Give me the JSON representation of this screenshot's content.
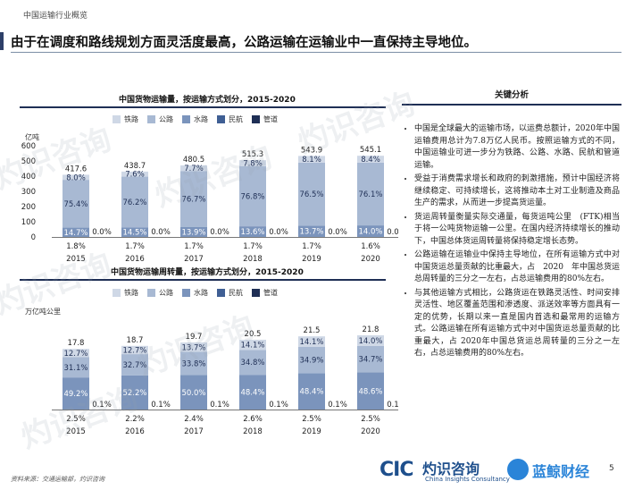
{
  "section_label": "中国运输行业概览",
  "headline": "由于在调度和路线规划方面灵活度最高，公路运输在运输业中一直保持主导地位。",
  "legend": [
    "铁路",
    "公路",
    "水路",
    "民航",
    "管道"
  ],
  "colors": {
    "铁路": "#cfd8e6",
    "公路": "#a8b9d3",
    "水路": "#7b94bc",
    "民航": "#3f5f94",
    "管道": "#1f2f55"
  },
  "chart_data": [
    {
      "type": "bar",
      "title": "中国货物运输量，按运输方式划分，2015-2020",
      "ylabel": "亿吨",
      "ylim": [
        0,
        600
      ],
      "yticks": [
        0,
        100,
        200,
        300,
        400,
        500,
        600
      ],
      "categories": [
        "2015",
        "2016",
        "2017",
        "2018",
        "2019",
        "2020"
      ],
      "totals": [
        "417.6",
        "438.7",
        "480.5",
        "515.3",
        "543.9",
        "545.1"
      ],
      "total_values": [
        417.6,
        438.7,
        480.5,
        515.3,
        543.9,
        545.1
      ],
      "series": [
        {
          "name": "铁路",
          "labels": [
            "8.0%",
            "7.6%",
            "7.7%",
            "7.8%",
            "8.1%",
            "8.4%"
          ],
          "values": [
            8.0,
            7.6,
            7.7,
            7.8,
            8.1,
            8.4
          ]
        },
        {
          "name": "公路",
          "labels": [
            "75.4%",
            "76.2%",
            "76.7%",
            "76.8%",
            "76.5%",
            "76.1%"
          ],
          "values": [
            75.4,
            76.2,
            76.7,
            76.8,
            76.5,
            76.1
          ]
        },
        {
          "name": "水路",
          "labels": [
            "14.7%",
            "14.5%",
            "13.9%",
            "13.6%",
            "13.7%",
            "14.0%"
          ],
          "values": [
            14.7,
            14.5,
            13.9,
            13.6,
            13.7,
            14.0
          ]
        },
        {
          "name": "民航",
          "labels": [
            "0.0%",
            "0.0%",
            "0.0%",
            "0.0%",
            "0.0%",
            "0.0%"
          ],
          "values": [
            0.0,
            0.0,
            0.0,
            0.0,
            0.0,
            0.0
          ]
        },
        {
          "name": "管道",
          "labels": [
            "1.8%",
            "1.7%",
            "1.7%",
            "1.7%",
            "1.7%",
            "1.6%"
          ],
          "values": [
            1.8,
            1.7,
            1.7,
            1.7,
            1.7,
            1.6
          ]
        }
      ]
    },
    {
      "type": "bar",
      "title": "中国货物运输周转量，按运输方式划分，2015-2020",
      "ylabel": "万亿吨公里",
      "categories": [
        "2015",
        "2016",
        "2017",
        "2018",
        "2019",
        "2020"
      ],
      "totals": [
        "17.8",
        "18.7",
        "19.7",
        "20.5",
        "21.5",
        "21.8"
      ],
      "total_values": [
        17.8,
        18.7,
        19.7,
        20.5,
        21.5,
        21.8
      ],
      "series": [
        {
          "name": "铁路",
          "labels": [
            "12.7%",
            "12.7%",
            "13.7%",
            "14.1%",
            "14.1%",
            "14.0%"
          ],
          "values": [
            12.7,
            12.7,
            13.7,
            14.1,
            14.1,
            14.0
          ]
        },
        {
          "name": "公路",
          "labels": [
            "31.1%",
            "32.7%",
            "33.8%",
            "34.8%",
            "34.9%",
            "34.7%"
          ],
          "values": [
            31.1,
            32.7,
            33.8,
            34.8,
            34.9,
            34.7
          ]
        },
        {
          "name": "水路",
          "labels": [
            "49.2%",
            "52.2%",
            "50.0%",
            "48.4%",
            "48.4%",
            "48.6%"
          ],
          "values": [
            49.2,
            52.2,
            50.0,
            48.4,
            48.4,
            48.6
          ]
        },
        {
          "name": "民航",
          "labels": [
            "0.1%",
            "0.1%",
            "0.1%",
            "0.1%",
            "0.1%",
            "0.1%"
          ],
          "values": [
            0.1,
            0.1,
            0.1,
            0.1,
            0.1,
            0.1
          ]
        },
        {
          "name": "管道",
          "labels": [
            "2.5%",
            "2.2%",
            "2.4%",
            "2.6%",
            "2.5%",
            "2.5%"
          ],
          "values": [
            2.5,
            2.2,
            2.4,
            2.6,
            2.5,
            2.5
          ]
        }
      ]
    }
  ],
  "analysis": {
    "title": "关键分析",
    "bullets": [
      "中国是全球最大的运输市场，以运费总额计，2020年中国运输费用总计为7.8万亿人民币。按照运输方式的不同，中国运输业可进一步分为铁路、公路、水路、民航和管道运输。",
      "受益于消费需求增长和政府的刺激措施，预计中国经济将继续稳定、可持续增长，这将推动本土对工业制造及商品生产的需求，从而进一步提高货运量。",
      "货运周转量衡量实际交通量，每货运吨公里　(FTK)相当于将一公吨货物运输一公里。在国内经济持续增长的推动下，中国总体货运周转量将保持稳定增长态势。",
      "公路运输在运输业中保持主导地位，在所有运输方式中对中国货运总量贡献的比重最大，占　2020　年中国总货运总周转量的三分之一左右，占总运输费用的80%左右。",
      "与其他运输方式相比，公路货运在铁路灵活性、时间安排灵活性、地区覆盖范围和渗透度、派送效率等方面具有一定的优势，长期以来一直是国内首选和最常用的运输方式。公路运输在所有运输方式中对中国货运总量贡献的比重最大，占 2020年中国总货运总周转量的三分之一左右，占总运输费用的80%左右。"
    ]
  },
  "footer": {
    "source": "资料来源：交通运输部，灼识咨询",
    "logo_cic": "CIC",
    "logo_name": "灼识咨询",
    "logo_en": "China Insights Consultancy",
    "logo2_name": "蓝鲸财经",
    "page": "5"
  },
  "watermark": "灼识咨询"
}
